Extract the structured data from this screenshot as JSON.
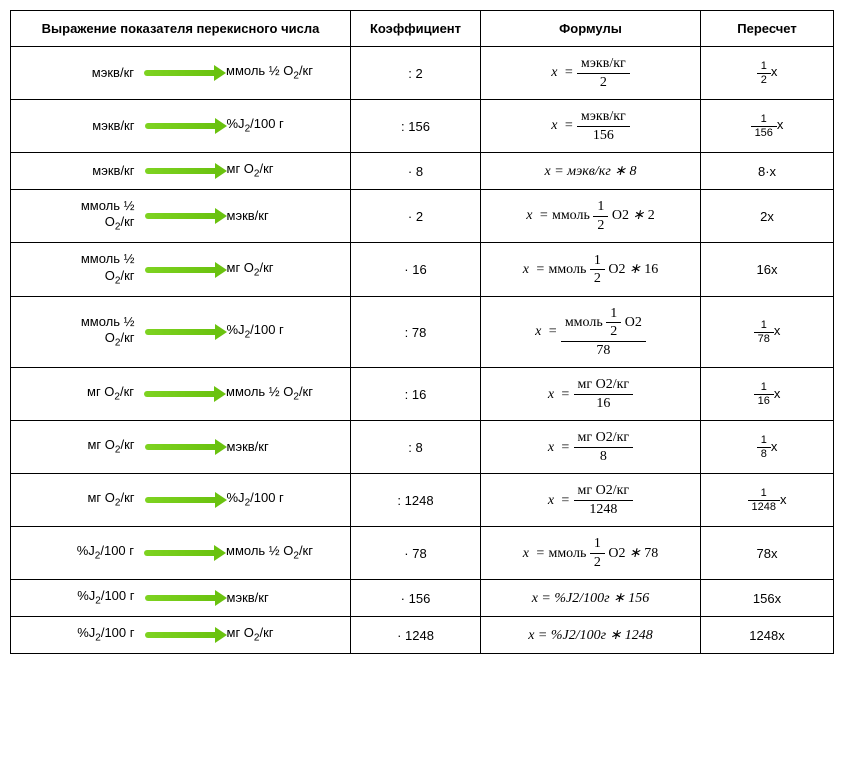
{
  "table": {
    "border_color": "#000000",
    "arrow_color_start": "#7ed321",
    "arrow_color_end": "#6ac20f",
    "font_family": "Arial",
    "formula_font_family": "Cambria Math",
    "headers": {
      "expr": "Выражение показателя перекисного числа",
      "coef": "Коэффициент",
      "formula": "Формулы",
      "recalc": "Пересчет"
    },
    "rows": [
      {
        "from": "мэкв/кг",
        "to": "ммоль ½ O₂/кг",
        "coef": ": 2",
        "formula_type": "frac",
        "formula_num": "мэкв/кг",
        "formula_den": "2",
        "recalc_num": "1",
        "recalc_den": "2",
        "recalc_suffix": "x"
      },
      {
        "from": "мэкв/кг",
        "to": "%J₂/100 г",
        "coef": ": 156",
        "formula_type": "frac",
        "formula_num": "мэкв/кг",
        "formula_den": "156",
        "recalc_num": "1",
        "recalc_den": "156",
        "recalc_suffix": "x"
      },
      {
        "from": "мэкв/кг",
        "to": "мг O₂/кг",
        "coef": "· 8",
        "formula_type": "plain",
        "formula_text": "x = мэкв/кг ∗ 8",
        "recalc_plain": "8·x"
      },
      {
        "from_line1": "ммоль ½",
        "from_line2": "O₂/кг",
        "to": "мэкв/кг",
        "coef": "· 2",
        "formula_type": "halfmul",
        "formula_prefix": "ммоль",
        "formula_mul": "2",
        "recalc_plain": "2x"
      },
      {
        "from_line1": "ммоль ½",
        "from_line2": "O₂/кг",
        "to": "мг O₂/кг",
        "coef": "· 16",
        "formula_type": "halfmul",
        "formula_prefix": "ммоль",
        "formula_mul": "16",
        "recalc_plain": "16x"
      },
      {
        "from_line1": "ммоль ½",
        "from_line2": "O₂/кг",
        "to": "%J₂/100 г",
        "coef": ": 78",
        "formula_type": "halffrac",
        "formula_prefix": "ммоль",
        "formula_den": "78",
        "recalc_num": "1",
        "recalc_den": "78",
        "recalc_suffix": "x"
      },
      {
        "from": "мг O₂/кг",
        "to": "ммоль ½ O₂/кг",
        "coef": ": 16",
        "formula_type": "frac",
        "formula_num": "мг O2/кг",
        "formula_den": "16",
        "recalc_num": "1",
        "recalc_den": "16",
        "recalc_suffix": "x"
      },
      {
        "from": "мг O₂/кг",
        "to": "мэкв/кг",
        "coef": ": 8",
        "formula_type": "frac",
        "formula_num": "мг O2/кг",
        "formula_den": "8",
        "recalc_num": "1",
        "recalc_den": "8",
        "recalc_suffix": "x"
      },
      {
        "from": "мг O₂/кг",
        "to": "%J₂/100 г",
        "coef": ": 1248",
        "formula_type": "frac",
        "formula_num": "мг O2/кг",
        "formula_den": "1248",
        "recalc_num": "1",
        "recalc_den": "1248",
        "recalc_suffix": "x"
      },
      {
        "from": "%J₂/100 г",
        "to": "ммоль ½ O₂/кг",
        "coef": "· 78",
        "formula_type": "halfmul",
        "formula_prefix": "ммоль",
        "formula_mul": "78",
        "recalc_plain": "78x"
      },
      {
        "from": "%J₂/100 г",
        "to": "мэкв/кг",
        "coef": "· 156",
        "formula_type": "plain_it",
        "formula_text": "x = %J2/100г ∗ 156",
        "recalc_plain": "156x"
      },
      {
        "from": "%J₂/100 г",
        "to": "мг O₂/кг",
        "coef": "· 1248",
        "formula_type": "plain_it",
        "formula_text": "x = %J2/100г ∗ 1248",
        "recalc_plain": "1248x"
      }
    ]
  }
}
